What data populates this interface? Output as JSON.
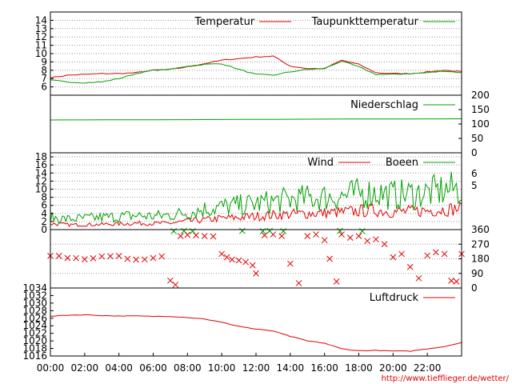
{
  "source_credit": "http://www.tiefflieger.de/wetter/",
  "colors": {
    "red": "#e00000",
    "green": "#00a000",
    "grid": "#999999",
    "frame": "#000000"
  },
  "chart_data": [
    {
      "id": "temp",
      "type": "line",
      "ylim": [
        5,
        15
      ],
      "yticks": [
        "6",
        "7",
        "8",
        "9",
        "10",
        "11",
        "12",
        "13",
        "14"
      ],
      "ytick_values": [
        6,
        7,
        8,
        9,
        10,
        11,
        12,
        13,
        14
      ],
      "ytick_side": "left",
      "grid": true,
      "legend": "top-right",
      "x": [
        0,
        1,
        2,
        3,
        4,
        5,
        6,
        7,
        8,
        9,
        10,
        11,
        12,
        13,
        14,
        15,
        16,
        17,
        18,
        19,
        20,
        21,
        22,
        23,
        24
      ],
      "series": [
        {
          "name": "Temperatur",
          "color": "red",
          "values": [
            7.1,
            7.4,
            7.5,
            7.6,
            7.6,
            7.7,
            8.0,
            8.1,
            8.4,
            8.8,
            9.2,
            9.4,
            9.6,
            9.7,
            8.5,
            8.2,
            8.2,
            9.2,
            8.7,
            7.7,
            7.6,
            7.6,
            7.8,
            8.0,
            7.8
          ]
        },
        {
          "name": "Taupunkttemperatur",
          "color": "green",
          "values": [
            6.8,
            6.6,
            6.5,
            6.6,
            7.0,
            7.6,
            8.0,
            8.1,
            8.5,
            8.7,
            8.8,
            8.1,
            7.5,
            7.4,
            7.8,
            8.1,
            8.2,
            9.1,
            8.4,
            7.5,
            7.5,
            7.6,
            7.7,
            7.9,
            7.7
          ]
        }
      ]
    },
    {
      "id": "rain",
      "type": "line",
      "ylim": [
        0,
        200
      ],
      "yticks": [
        "0",
        "50",
        "100",
        "150",
        "200"
      ],
      "ytick_values": [
        0,
        50,
        100,
        150,
        200
      ],
      "ytick_side": "right",
      "grid": false,
      "legend": "top-right",
      "x": [
        0,
        8,
        16,
        24
      ],
      "series": [
        {
          "name": "Niederschlag",
          "color": "green",
          "values": [
            114,
            115,
            117,
            118
          ]
        }
      ]
    },
    {
      "id": "wind",
      "type": "line",
      "ylim": [
        0,
        19
      ],
      "yticks": [
        "0",
        "2",
        "4",
        "6",
        "8",
        "10",
        "12",
        "14",
        "16",
        "18"
      ],
      "ytick_values": [
        0,
        2,
        4,
        6,
        8,
        10,
        12,
        14,
        16,
        18
      ],
      "ytick_side": "left",
      "right_ticks": [
        "5",
        "6"
      ],
      "right_tick_values": [
        10.9,
        13.9
      ],
      "grid": true,
      "legend": "top-right",
      "x": [
        0,
        1,
        2,
        3,
        4,
        5,
        6,
        7,
        8,
        9,
        10,
        11,
        12,
        13,
        14,
        15,
        16,
        17,
        18,
        19,
        20,
        21,
        22,
        23,
        24
      ],
      "series": [
        {
          "name": "Wind",
          "color": "red",
          "values": [
            1.5,
            1.2,
            1.2,
            1.3,
            1.4,
            1.6,
            1.5,
            1.6,
            2.1,
            2.4,
            2.8,
            3.0,
            3.3,
            3.6,
            3.8,
            4.0,
            4.1,
            4.3,
            4.6,
            4.8,
            4.4,
            4.5,
            4.7,
            5.0,
            5.2
          ]
        },
        {
          "name": "Boeen",
          "color": "green",
          "values": [
            3.0,
            2.6,
            2.8,
            3.0,
            3.2,
            3.5,
            3.3,
            3.6,
            4.2,
            5.1,
            5.6,
            6.0,
            6.4,
            7.0,
            7.4,
            7.8,
            8.0,
            8.3,
            8.9,
            9.2,
            8.5,
            8.8,
            9.1,
            9.8,
            10.2
          ]
        }
      ]
    },
    {
      "id": "dir",
      "type": "scatter",
      "ylim": [
        0,
        360
      ],
      "yticks": [
        "0",
        "90",
        "180",
        "270",
        "360"
      ],
      "ytick_values": [
        0,
        90,
        180,
        270,
        360
      ],
      "ytick_side": "right",
      "grid": true,
      "series": [
        {
          "name": "",
          "color": "red",
          "marker": "x",
          "points": [
            [
              0,
              198
            ],
            [
              0.5,
              198
            ],
            [
              1,
              185
            ],
            [
              1.5,
              184
            ],
            [
              2,
              177
            ],
            [
              2.5,
              183
            ],
            [
              3,
              195
            ],
            [
              3.5,
              196
            ],
            [
              4,
              198
            ],
            [
              4.5,
              180
            ],
            [
              5,
              175
            ],
            [
              5.5,
              176
            ],
            [
              6,
              185
            ],
            [
              6.5,
              195
            ],
            [
              7,
              46
            ],
            [
              7.3,
              20
            ],
            [
              7.6,
              320
            ],
            [
              8,
              328
            ],
            [
              8.5,
              325
            ],
            [
              9,
              320
            ],
            [
              9.5,
              318
            ],
            [
              10,
              210
            ],
            [
              10.3,
              190
            ],
            [
              10.6,
              175
            ],
            [
              11,
              170
            ],
            [
              11.4,
              160
            ],
            [
              11.8,
              140
            ],
            [
              12,
              90
            ],
            [
              12.5,
              325
            ],
            [
              13,
              330
            ],
            [
              13.5,
              320
            ],
            [
              14,
              150
            ],
            [
              14.5,
              30
            ],
            [
              15,
              320
            ],
            [
              15.5,
              330
            ],
            [
              16,
              295
            ],
            [
              16.3,
              180
            ],
            [
              16.7,
              40
            ],
            [
              17,
              330
            ],
            [
              17.5,
              310
            ],
            [
              18,
              320
            ],
            [
              18.5,
              290
            ],
            [
              19,
              300
            ],
            [
              19.5,
              270
            ],
            [
              20,
              190
            ],
            [
              20.5,
              210
            ],
            [
              21,
              130
            ],
            [
              21.5,
              60
            ],
            [
              22,
              200
            ],
            [
              22.5,
              220
            ],
            [
              23,
              210
            ],
            [
              23.4,
              45
            ],
            [
              23.7,
              40
            ],
            [
              24,
              210
            ]
          ]
        },
        {
          "name": "",
          "color": "green",
          "marker": "x",
          "points": [
            [
              7.2,
              350
            ],
            [
              7.8,
              352
            ],
            [
              8.3,
              350
            ],
            [
              11.2,
              352
            ],
            [
              12.4,
              350
            ],
            [
              12.8,
              352
            ],
            [
              13.6,
              350
            ],
            [
              16.9,
              352
            ],
            [
              18.2,
              350
            ]
          ]
        }
      ]
    },
    {
      "id": "pressure",
      "type": "line",
      "ylim": [
        1016,
        1034
      ],
      "yticks": [
        "1016",
        "1018",
        "1020",
        "1022",
        "1024",
        "1026",
        "1028",
        "1030",
        "1032",
        "1034"
      ],
      "ytick_values": [
        1016,
        1018,
        1020,
        1022,
        1024,
        1026,
        1028,
        1030,
        1032,
        1034
      ],
      "ytick_side": "left",
      "grid": false,
      "legend": "top-right",
      "xticks": [
        "00:00",
        "02:00",
        "04:00",
        "06:00",
        "08:00",
        "10:00",
        "12:00",
        "14:00",
        "16:00",
        "18:00",
        "20:00",
        "22:00"
      ],
      "xtick_values": [
        0,
        2,
        4,
        6,
        8,
        10,
        12,
        14,
        16,
        18,
        20,
        22
      ],
      "x": [
        0,
        1,
        2,
        3,
        4,
        5,
        6,
        7,
        8,
        9,
        10,
        11,
        12,
        13,
        14,
        15,
        16,
        17,
        18,
        19,
        20,
        21,
        22,
        23,
        24
      ],
      "series": [
        {
          "name": "Luftdruck",
          "color": "red",
          "values": [
            1026.5,
            1026.8,
            1026.9,
            1026.7,
            1026.6,
            1026.6,
            1026.5,
            1026.5,
            1026.2,
            1025.8,
            1024.9,
            1023.9,
            1023.1,
            1022.6,
            1021.2,
            1020.0,
            1019.4,
            1017.9,
            1017.4,
            1017.5,
            1017.3,
            1017.3,
            1017.9,
            1018.5,
            1019.6
          ]
        }
      ]
    }
  ]
}
